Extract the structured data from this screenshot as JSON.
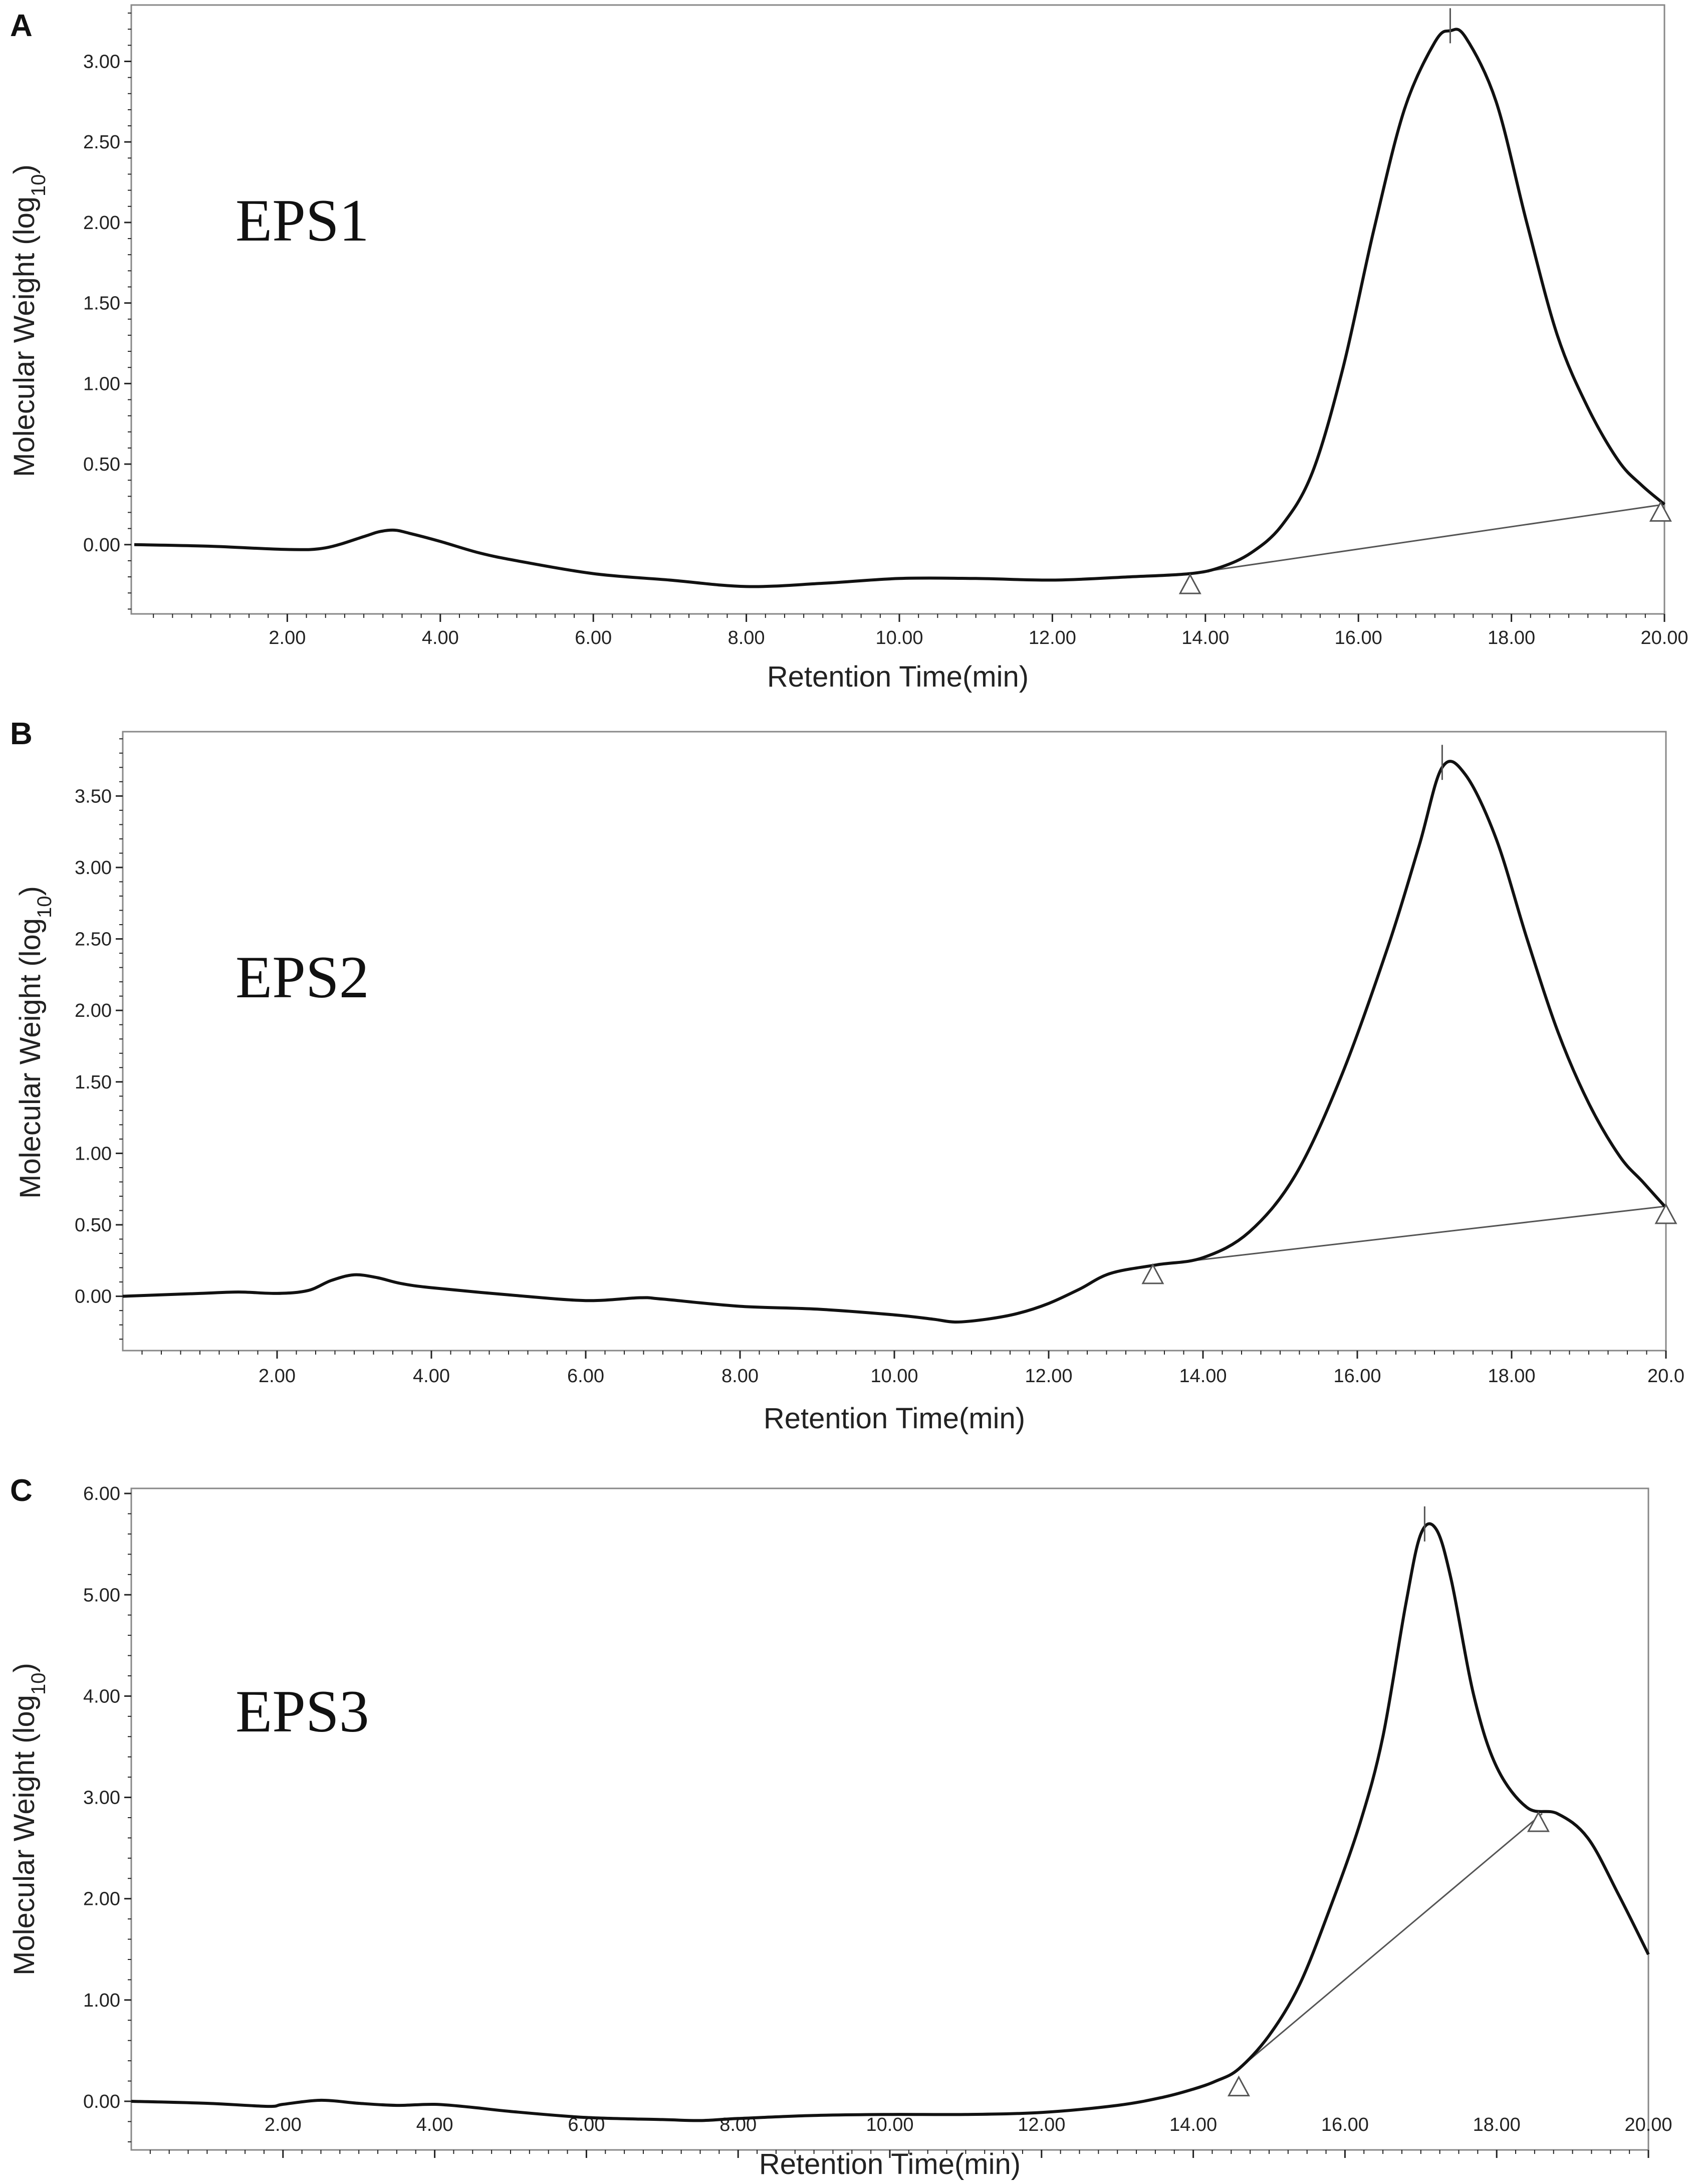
{
  "colors": {
    "trace": "#111111",
    "baseline": "#555555",
    "frame": "#888888",
    "axis": "#222222"
  },
  "chart_data": [
    {
      "panel": "A",
      "type": "line",
      "annotation": "EPS1",
      "xlabel": "Retention Time(min)",
      "ylabel": "Molecular Weight (log10)",
      "xlim": [
        0,
        20
      ],
      "ylim": [
        -0.43,
        3.35
      ],
      "x_ticks": [
        2,
        4,
        6,
        8,
        10,
        12,
        14,
        16,
        18,
        20
      ],
      "x_tick_labels": [
        "2.00",
        "4.00",
        "6.00",
        "8.00",
        "10.00",
        "12.00",
        "14.00",
        "16.00",
        "18.00",
        "20.00"
      ],
      "y_ticks": [
        0,
        0.5,
        1,
        1.5,
        2,
        2.5,
        3
      ],
      "y_tick_labels": [
        "0.00",
        "0.50",
        "1.00",
        "1.50",
        "2.00",
        "2.50",
        "3.00"
      ],
      "grid": false,
      "series": [
        {
          "x": [
            0.0,
            1.0,
            2.0,
            2.5,
            3.0,
            3.2,
            3.4,
            3.6,
            4.0,
            4.5,
            5.0,
            6.0,
            7.0,
            8.0,
            9.0,
            10.0,
            11.0,
            12.0,
            13.0,
            13.8,
            14.2,
            14.6,
            15.0,
            15.4,
            15.8,
            16.2,
            16.6,
            17.0,
            17.2,
            17.4,
            17.8,
            18.2,
            18.6,
            19.0,
            19.4,
            19.7,
            20.0
          ],
          "y": [
            0.0,
            -0.01,
            -0.03,
            -0.02,
            0.05,
            0.08,
            0.09,
            0.07,
            0.02,
            -0.05,
            -0.1,
            -0.18,
            -0.22,
            -0.26,
            -0.24,
            -0.21,
            -0.21,
            -0.22,
            -0.2,
            -0.18,
            -0.14,
            -0.05,
            0.12,
            0.45,
            1.1,
            1.95,
            2.7,
            3.12,
            3.19,
            3.15,
            2.75,
            2.0,
            1.3,
            0.85,
            0.52,
            0.37,
            0.25
          ]
        }
      ],
      "baseline": {
        "x": [
          13.8,
          20.0
        ],
        "y": [
          -0.18,
          0.25
        ]
      },
      "markers": [
        {
          "x": 13.8,
          "y": -0.25
        },
        {
          "x": 19.95,
          "y": 0.2
        }
      ],
      "peak_tick_x": 17.2
    },
    {
      "panel": "B",
      "type": "line",
      "annotation": "EPS2",
      "xlabel": "Retention Time(min)",
      "ylabel": "Molecular Weight (log10)",
      "xlim": [
        0,
        20
      ],
      "ylim": [
        -0.38,
        3.95
      ],
      "x_ticks": [
        2,
        4,
        6,
        8,
        10,
        12,
        14,
        16,
        18,
        20
      ],
      "x_tick_labels": [
        "2.00",
        "4.00",
        "6.00",
        "8.00",
        "10.00",
        "12.00",
        "14.00",
        "16.00",
        "18.00",
        "20.0"
      ],
      "y_ticks": [
        0,
        0.5,
        1,
        1.5,
        2,
        2.5,
        3,
        3.5
      ],
      "y_tick_labels": [
        "0.00",
        "0.50",
        "1.00",
        "1.50",
        "2.00",
        "2.50",
        "3.00",
        "3.50"
      ],
      "grid": false,
      "series": [
        {
          "x": [
            0.0,
            1.0,
            1.5,
            2.0,
            2.4,
            2.7,
            3.0,
            3.3,
            3.6,
            4.0,
            5.0,
            6.0,
            6.7,
            7.0,
            8.0,
            9.0,
            10.0,
            10.5,
            10.8,
            11.2,
            11.6,
            12.0,
            12.4,
            12.8,
            13.4,
            14.0,
            14.6,
            15.2,
            15.8,
            16.4,
            16.8,
            17.1,
            17.4,
            17.8,
            18.2,
            18.6,
            19.0,
            19.4,
            19.7,
            20.0
          ],
          "y": [
            0.0,
            0.02,
            0.03,
            0.02,
            0.04,
            0.11,
            0.15,
            0.13,
            0.09,
            0.06,
            0.01,
            -0.03,
            -0.01,
            -0.02,
            -0.07,
            -0.09,
            -0.13,
            -0.16,
            -0.18,
            -0.16,
            -0.12,
            -0.05,
            0.05,
            0.16,
            0.22,
            0.27,
            0.45,
            0.85,
            1.55,
            2.45,
            3.15,
            3.7,
            3.65,
            3.2,
            2.5,
            1.85,
            1.35,
            0.98,
            0.8,
            0.62
          ]
        }
      ],
      "baseline": {
        "x": [
          13.4,
          20.0
        ],
        "y": [
          0.22,
          0.63
        ]
      },
      "markers": [
        {
          "x": 13.35,
          "y": 0.15
        },
        {
          "x": 20.0,
          "y": 0.57
        }
      ],
      "peak_tick_x": 17.1
    },
    {
      "panel": "C",
      "type": "line",
      "annotation": "EPS3",
      "xlabel": "Retention Time(min)",
      "ylabel": "Molecular Weight (log10)",
      "xlim": [
        0,
        20
      ],
      "ylim": [
        -0.48,
        6.05
      ],
      "x_ticks": [
        2,
        4,
        6,
        8,
        10,
        12,
        14,
        16,
        18,
        20
      ],
      "x_tick_labels": [
        "2.00",
        "4.00",
        "6.00",
        "8.00",
        "10.00",
        "12.00",
        "14.00",
        "16.00",
        "18.00",
        "20.00"
      ],
      "y_ticks": [
        0,
        1,
        2,
        3,
        4,
        5,
        6
      ],
      "y_tick_labels": [
        "0.00",
        "1.00",
        "2.00",
        "3.00",
        "4.00",
        "5.00",
        "6.00"
      ],
      "grid": false,
      "series": [
        {
          "x": [
            0.0,
            1.0,
            1.8,
            2.0,
            2.5,
            3.0,
            3.5,
            4.0,
            4.5,
            5.0,
            6.0,
            7.0,
            7.5,
            8.0,
            9.0,
            10.0,
            11.0,
            12.0,
            13.0,
            13.6,
            14.0,
            14.3,
            14.6,
            15.0,
            15.4,
            15.8,
            16.2,
            16.5,
            16.8,
            17.0,
            17.2,
            17.4,
            17.7,
            18.0,
            18.4,
            18.8,
            19.2,
            19.6,
            20.0
          ],
          "y": [
            0.0,
            -0.02,
            -0.05,
            -0.03,
            0.01,
            -0.02,
            -0.04,
            -0.03,
            -0.06,
            -0.1,
            -0.16,
            -0.18,
            -0.19,
            -0.17,
            -0.14,
            -0.13,
            -0.13,
            -0.11,
            -0.04,
            0.04,
            0.12,
            0.2,
            0.32,
            0.65,
            1.15,
            1.9,
            2.75,
            3.6,
            4.9,
            5.6,
            5.65,
            5.15,
            4.0,
            3.3,
            2.9,
            2.84,
            2.6,
            2.05,
            1.45
          ]
        }
      ],
      "baseline": {
        "x": [
          14.6,
          18.6
        ],
        "y": [
          0.32,
          2.84
        ]
      },
      "markers": [
        {
          "x": 14.6,
          "y": 0.14
        },
        {
          "x": 18.55,
          "y": 2.75
        }
      ],
      "peak_tick_x": 17.05
    }
  ]
}
